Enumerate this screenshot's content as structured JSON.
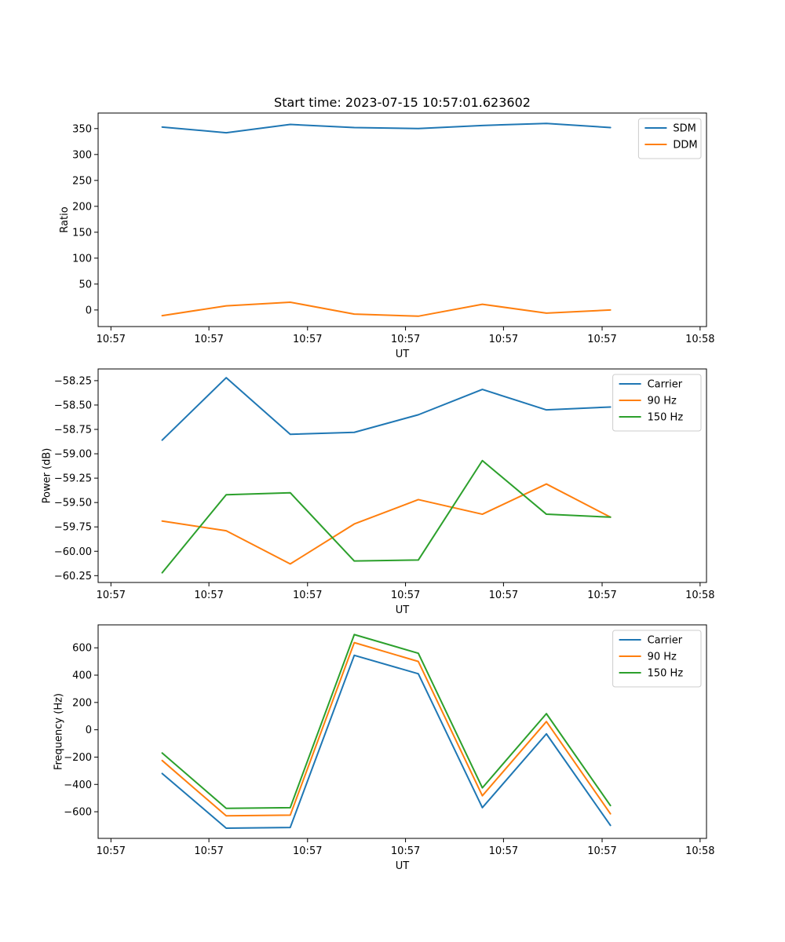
{
  "chart_data": [
    {
      "type": "line",
      "title": "Start time: 2023-07-15 10:57:01.623602",
      "xlabel": "UT",
      "ylabel": "Ratio",
      "x": [
        1,
        2,
        3,
        4,
        5,
        6,
        7,
        8
      ],
      "xlim": [
        0,
        9.5
      ],
      "xticks": [
        0.2,
        1.73,
        3.27,
        4.8,
        6.33,
        7.87,
        9.4
      ],
      "xtick_labels": [
        "10:57",
        "10:57",
        "10:57",
        "10:57",
        "10:57",
        "10:57",
        "10:58"
      ],
      "ylim": [
        -32,
        380
      ],
      "yticks": [
        0,
        50,
        100,
        150,
        200,
        250,
        300,
        350
      ],
      "ytick_labels": [
        "0",
        "50",
        "100",
        "150",
        "200",
        "250",
        "300",
        "350"
      ],
      "legend_position": "top-right",
      "grid": false,
      "series": [
        {
          "name": "SDM",
          "color": "#1f77b4",
          "values": [
            353,
            342,
            358,
            352,
            350,
            356,
            360,
            352
          ]
        },
        {
          "name": "DDM",
          "color": "#ff7f0e",
          "values": [
            -11,
            8,
            15,
            -8,
            -12,
            11,
            -6,
            0
          ]
        }
      ]
    },
    {
      "type": "line",
      "title": "",
      "xlabel": "UT",
      "ylabel": "Power (dB)",
      "x": [
        1,
        2,
        3,
        4,
        5,
        6,
        7,
        8
      ],
      "xlim": [
        0,
        9.5
      ],
      "xticks": [
        0.2,
        1.73,
        3.27,
        4.8,
        6.33,
        7.87,
        9.4
      ],
      "xtick_labels": [
        "10:57",
        "10:57",
        "10:57",
        "10:57",
        "10:57",
        "10:57",
        "10:58"
      ],
      "ylim": [
        -60.32,
        -58.13
      ],
      "yticks": [
        -60.25,
        -60.0,
        -59.75,
        -59.5,
        -59.25,
        -59.0,
        -58.75,
        -58.5,
        -58.25
      ],
      "ytick_labels": [
        "−60.25",
        "−60.00",
        "−59.75",
        "−59.50",
        "−59.25",
        "−59.00",
        "−58.75",
        "−58.50",
        "−58.25"
      ],
      "legend_position": "top-right",
      "grid": false,
      "series": [
        {
          "name": "Carrier",
          "color": "#1f77b4",
          "values": [
            -58.86,
            -58.22,
            -58.8,
            -58.78,
            -58.6,
            -58.34,
            -58.55,
            -58.52
          ]
        },
        {
          "name": "90 Hz",
          "color": "#ff7f0e",
          "values": [
            -59.69,
            -59.79,
            -60.13,
            -59.72,
            -59.47,
            -59.62,
            -59.31,
            -59.65
          ]
        },
        {
          "name": "150 Hz",
          "color": "#2ca02c",
          "values": [
            -60.22,
            -59.42,
            -59.4,
            -60.1,
            -60.09,
            -59.07,
            -59.62,
            -59.65
          ]
        }
      ]
    },
    {
      "type": "line",
      "title": "",
      "xlabel": "UT",
      "ylabel": "Frequency (Hz)",
      "x": [
        1,
        2,
        3,
        4,
        5,
        6,
        7,
        8
      ],
      "xlim": [
        0,
        9.5
      ],
      "xticks": [
        0.2,
        1.73,
        3.27,
        4.8,
        6.33,
        7.87,
        9.4
      ],
      "xtick_labels": [
        "10:57",
        "10:57",
        "10:57",
        "10:57",
        "10:57",
        "10:57",
        "10:58"
      ],
      "ylim": [
        -795,
        768
      ],
      "yticks": [
        -600,
        -400,
        -200,
        0,
        200,
        400,
        600
      ],
      "ytick_labels": [
        "−600",
        "−400",
        "−200",
        "0",
        "200",
        "400",
        "600"
      ],
      "legend_position": "top-right",
      "grid": false,
      "series": [
        {
          "name": "Carrier",
          "color": "#1f77b4",
          "values": [
            -320,
            -720,
            -715,
            545,
            410,
            -570,
            -30,
            -700
          ]
        },
        {
          "name": "90 Hz",
          "color": "#ff7f0e",
          "values": [
            -225,
            -630,
            -625,
            638,
            500,
            -483,
            60,
            -615
          ]
        },
        {
          "name": "150 Hz",
          "color": "#2ca02c",
          "values": [
            -170,
            -575,
            -570,
            697,
            560,
            -425,
            118,
            -555
          ]
        }
      ]
    }
  ]
}
